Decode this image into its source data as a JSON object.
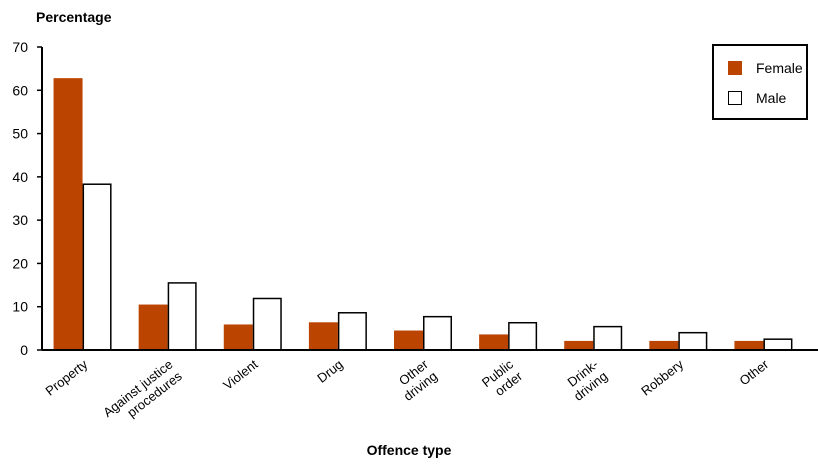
{
  "chart_data": {
    "type": "bar",
    "ylabel": "Percentage",
    "xlabel": "Offence type",
    "ylim": [
      0,
      70
    ],
    "yticks": [
      0,
      10,
      20,
      30,
      40,
      50,
      60,
      70
    ],
    "categories": [
      [
        "Property"
      ],
      [
        "Against justice",
        "procedures"
      ],
      [
        "Violent"
      ],
      [
        "Drug"
      ],
      [
        "Other",
        "driving"
      ],
      [
        "Public",
        "order"
      ],
      [
        "Drink-",
        "driving"
      ],
      [
        "Robbery"
      ],
      [
        "Other"
      ]
    ],
    "series": [
      {
        "name": "Female",
        "color": "#bb4400",
        "values": [
          62.8,
          10.5,
          5.9,
          6.4,
          4.5,
          3.6,
          2.1,
          2.1,
          2.1
        ]
      },
      {
        "name": "Male",
        "color": "#ffffff",
        "values": [
          38.3,
          15.5,
          11.9,
          8.6,
          7.7,
          6.3,
          5.4,
          4.0,
          2.5
        ]
      }
    ],
    "legend_position": "top-right",
    "grid": false
  }
}
